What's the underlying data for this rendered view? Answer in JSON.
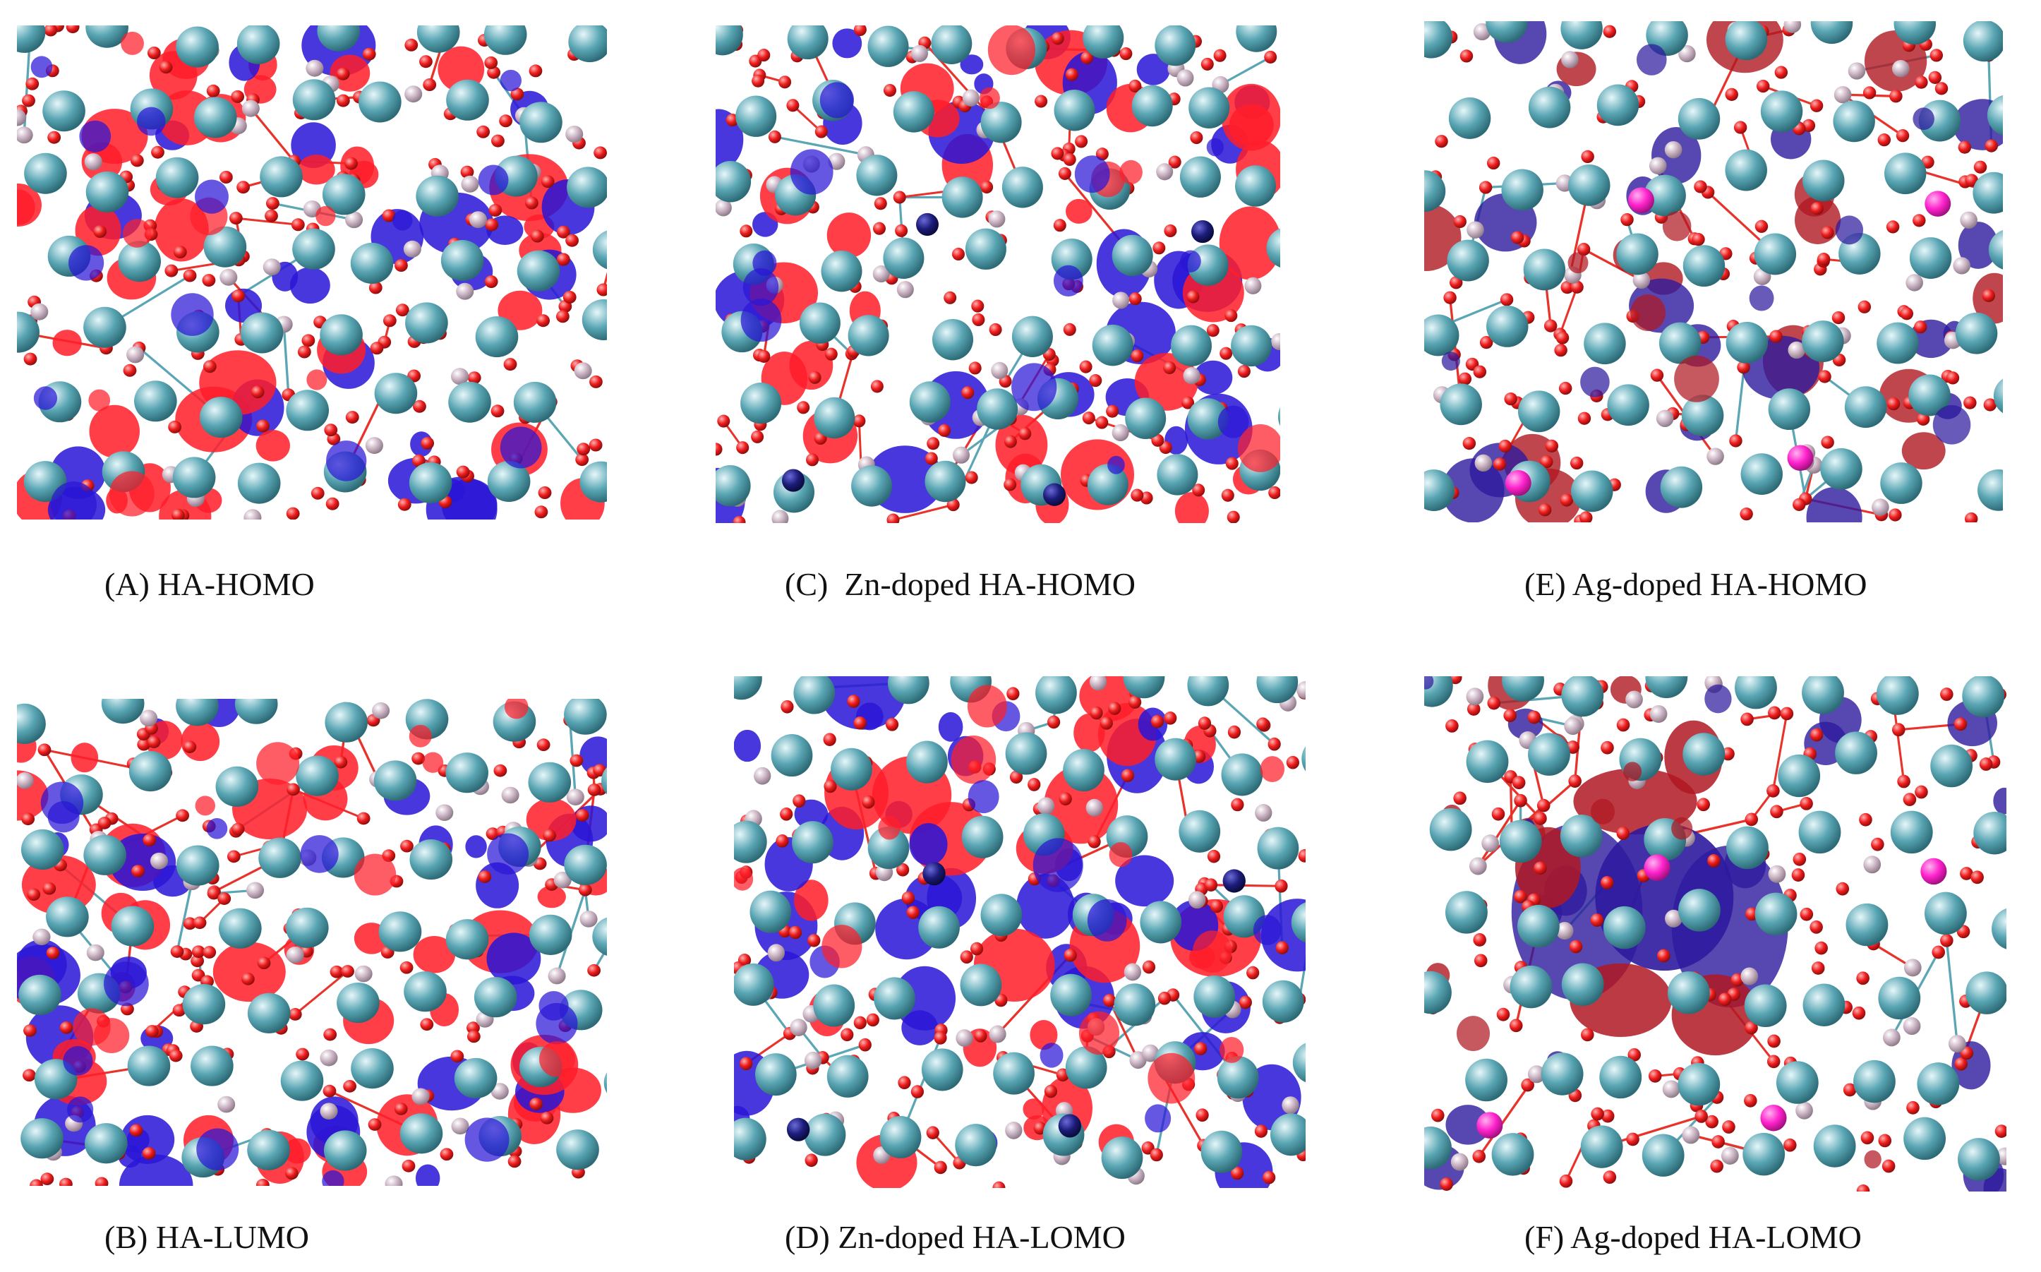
{
  "figure": {
    "panels": [
      {
        "id": "a",
        "caption": "(A) HA-HOMO",
        "dopant": "none",
        "orbital": "HOMO"
      },
      {
        "id": "c",
        "caption": "(C)  Zn-doped HA-HOMO",
        "dopant": "Zn",
        "orbital": "HOMO"
      },
      {
        "id": "e",
        "caption": "(E) Ag-doped HA-HOMO",
        "dopant": "Ag",
        "orbital": "HOMO"
      },
      {
        "id": "b",
        "caption": "(B) HA-LUMO",
        "dopant": "none",
        "orbital": "LUMO"
      },
      {
        "id": "d",
        "caption": "(D) Zn-doped HA-LOMO",
        "dopant": "Zn",
        "orbital": "LOMO"
      },
      {
        "id": "f",
        "caption": "(F) Ag-doped HA-LOMO",
        "dopant": "Ag",
        "orbital": "LOMO"
      }
    ]
  },
  "colors": {
    "calcium_atom": "#5aa6b4",
    "oxygen_atom": "#ee1c1c",
    "phosphorus_atom": "#c9b2c2",
    "zinc_atom": "#1c1c7a",
    "silver_atom": "#ff22cc",
    "bond_teal": "#5aa6b4",
    "bond_red": "#e8322a",
    "lobe_positive_bright": "#ff1e2a",
    "lobe_negative_bright": "#2a16d6",
    "lobe_positive_dark": "#b01822",
    "lobe_negative_dark": "#2d1a9e"
  }
}
